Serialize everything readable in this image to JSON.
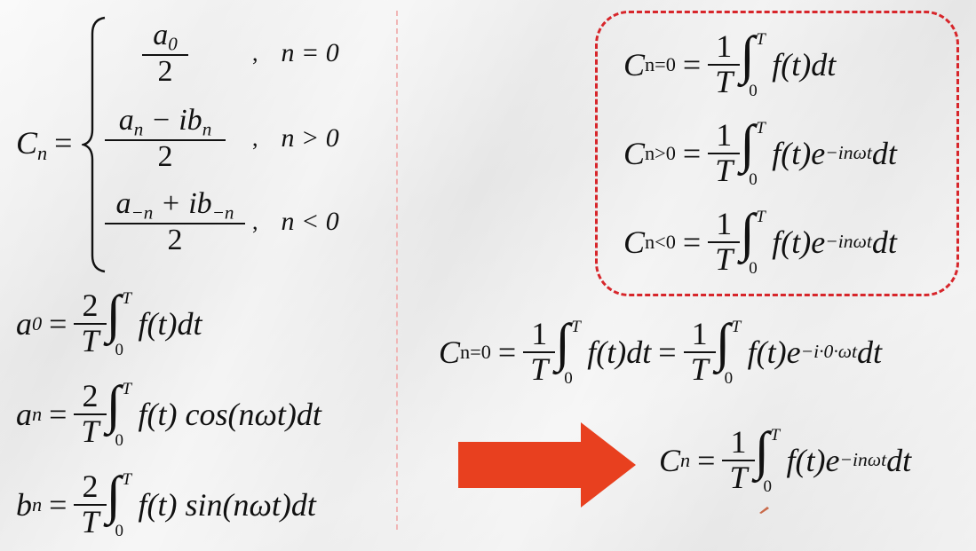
{
  "left": {
    "cn_label": "C",
    "cn_sub": "n",
    "cases": [
      {
        "num": "a",
        "num_sub": "0",
        "num_rest": "",
        "den": "2",
        "cond": "n = 0"
      },
      {
        "num": "a",
        "num_sub": "n",
        "num_rest": " − ib",
        "num_rest_sub": "n",
        "den": "2",
        "cond": "n > 0"
      },
      {
        "num": "a",
        "num_sub": "−n",
        "num_rest": " + ib",
        "num_rest_sub": "−n",
        "den": "2",
        "cond": "n < 0"
      }
    ],
    "comma": ",",
    "a0": {
      "lhs": "a",
      "lhs_sub": "0",
      "coef_num": "2",
      "coef_den": "T",
      "upper": "T",
      "lower": "0",
      "body": "f(t)dt"
    },
    "an": {
      "lhs": "a",
      "lhs_sub": "n",
      "coef_num": "2",
      "coef_den": "T",
      "upper": "T",
      "lower": "0",
      "body": "f(t) cos(nωt)dt"
    },
    "bn": {
      "lhs": "b",
      "lhs_sub": "n",
      "coef_num": "2",
      "coef_den": "T",
      "upper": "T",
      "lower": "0",
      "body": "f(t) sin(nωt)dt"
    }
  },
  "right": {
    "box": [
      {
        "sub": "n=0",
        "body": "f(t)dt",
        "exp": ""
      },
      {
        "sub": "n>0",
        "body": "f(t)e",
        "exp": "−inωt",
        "tail": "dt"
      },
      {
        "sub": "n<0",
        "body": "f(t)e",
        "exp": "−inωt",
        "tail": "dt"
      }
    ],
    "middle": {
      "sub": "n=0",
      "body1": "f(t)dt",
      "body2": "f(t)e",
      "exp2": "−i·0·ωt",
      "tail2": "dt"
    },
    "final": {
      "sub": "n",
      "body": "f(t)e",
      "exp": "−inωt",
      "tail": "dt"
    },
    "one": "1",
    "T": "T",
    "upper": "T",
    "lower": "0"
  },
  "colors": {
    "box_border": "#d7262b",
    "arrow": "#e8401f",
    "divider": "#f0b6b6"
  }
}
